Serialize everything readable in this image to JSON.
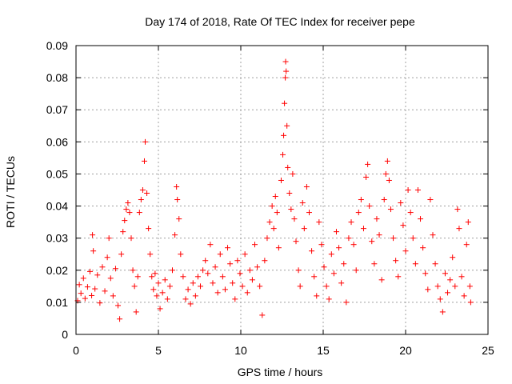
{
  "chart_data": {
    "type": "scatter",
    "title": "Day 174 of 2018, Rate Of TEC Index for receiver pepe",
    "xlabel": "GPS time / hours",
    "ylabel": "ROTI / TECUs",
    "xlim": [
      0,
      25
    ],
    "ylim": [
      0,
      0.09
    ],
    "xticks": [
      0,
      5,
      10,
      15,
      20,
      25
    ],
    "xtick_labels": [
      "0",
      "5",
      "10",
      "15",
      "20",
      "25"
    ],
    "yticks": [
      0,
      0.01,
      0.02,
      0.03,
      0.04,
      0.05,
      0.06,
      0.07,
      0.08,
      0.09
    ],
    "ytick_labels": [
      "0",
      "0.01",
      "0.02",
      "0.03",
      "0.04",
      "0.05",
      "0.06",
      "0.07",
      "0.08",
      "0.09"
    ],
    "grid": true,
    "marker": "+",
    "marker_color": "#ff0000",
    "series": [
      {
        "name": "ROTI",
        "points": [
          [
            0.1,
            0.0105
          ],
          [
            0.2,
            0.0155
          ],
          [
            0.3,
            0.0128
          ],
          [
            0.45,
            0.0175
          ],
          [
            0.55,
            0.0112
          ],
          [
            0.7,
            0.0148
          ],
          [
            0.85,
            0.0196
          ],
          [
            0.95,
            0.0121
          ],
          [
            1.0,
            0.031
          ],
          [
            1.05,
            0.026
          ],
          [
            1.15,
            0.0142
          ],
          [
            1.3,
            0.0185
          ],
          [
            1.45,
            0.0098
          ],
          [
            1.6,
            0.021
          ],
          [
            1.75,
            0.0135
          ],
          [
            1.9,
            0.024
          ],
          [
            2.0,
            0.03
          ],
          [
            2.1,
            0.0175
          ],
          [
            2.25,
            0.012
          ],
          [
            2.4,
            0.0205
          ],
          [
            2.55,
            0.009
          ],
          [
            2.65,
            0.0048
          ],
          [
            2.75,
            0.025
          ],
          [
            2.85,
            0.032
          ],
          [
            2.95,
            0.0355
          ],
          [
            3.05,
            0.039
          ],
          [
            3.15,
            0.041
          ],
          [
            3.25,
            0.038
          ],
          [
            3.35,
            0.03
          ],
          [
            3.45,
            0.02
          ],
          [
            3.55,
            0.015
          ],
          [
            3.65,
            0.007
          ],
          [
            3.75,
            0.018
          ],
          [
            3.85,
            0.038
          ],
          [
            3.95,
            0.042
          ],
          [
            4.05,
            0.045
          ],
          [
            4.15,
            0.054
          ],
          [
            4.2,
            0.06
          ],
          [
            4.3,
            0.044
          ],
          [
            4.4,
            0.033
          ],
          [
            4.5,
            0.025
          ],
          [
            4.6,
            0.018
          ],
          [
            4.7,
            0.014
          ],
          [
            4.8,
            0.019
          ],
          [
            4.9,
            0.012
          ],
          [
            5.0,
            0.016
          ],
          [
            5.1,
            0.008
          ],
          [
            5.25,
            0.013
          ],
          [
            5.4,
            0.017
          ],
          [
            5.55,
            0.011
          ],
          [
            5.7,
            0.015
          ],
          [
            5.85,
            0.02
          ],
          [
            6.0,
            0.031
          ],
          [
            6.1,
            0.046
          ],
          [
            6.15,
            0.042
          ],
          [
            6.25,
            0.036
          ],
          [
            6.35,
            0.025
          ],
          [
            6.5,
            0.018
          ],
          [
            6.65,
            0.011
          ],
          [
            6.8,
            0.014
          ],
          [
            6.95,
            0.0095
          ],
          [
            7.1,
            0.016
          ],
          [
            7.25,
            0.012
          ],
          [
            7.4,
            0.018
          ],
          [
            7.55,
            0.015
          ],
          [
            7.7,
            0.02
          ],
          [
            7.85,
            0.023
          ],
          [
            8.0,
            0.019
          ],
          [
            8.15,
            0.028
          ],
          [
            8.3,
            0.016
          ],
          [
            8.45,
            0.021
          ],
          [
            8.6,
            0.013
          ],
          [
            8.75,
            0.025
          ],
          [
            8.9,
            0.018
          ],
          [
            9.05,
            0.014
          ],
          [
            9.2,
            0.027
          ],
          [
            9.35,
            0.022
          ],
          [
            9.5,
            0.016
          ],
          [
            9.65,
            0.011
          ],
          [
            9.8,
            0.023
          ],
          [
            9.95,
            0.019
          ],
          [
            10.1,
            0.015
          ],
          [
            10.25,
            0.025
          ],
          [
            10.4,
            0.013
          ],
          [
            10.55,
            0.02
          ],
          [
            10.7,
            0.017
          ],
          [
            10.85,
            0.028
          ],
          [
            11.0,
            0.021
          ],
          [
            11.15,
            0.015
          ],
          [
            11.3,
            0.006
          ],
          [
            11.45,
            0.023
          ],
          [
            11.6,
            0.03
          ],
          [
            11.75,
            0.035
          ],
          [
            11.9,
            0.04
          ],
          [
            12.0,
            0.033
          ],
          [
            12.1,
            0.043
          ],
          [
            12.2,
            0.038
          ],
          [
            12.3,
            0.027
          ],
          [
            12.45,
            0.048
          ],
          [
            12.55,
            0.056
          ],
          [
            12.6,
            0.062
          ],
          [
            12.65,
            0.072
          ],
          [
            12.7,
            0.08
          ],
          [
            12.72,
            0.085
          ],
          [
            12.75,
            0.082
          ],
          [
            12.8,
            0.065
          ],
          [
            12.85,
            0.052
          ],
          [
            12.95,
            0.044
          ],
          [
            13.05,
            0.039
          ],
          [
            13.15,
            0.05
          ],
          [
            13.25,
            0.036
          ],
          [
            13.35,
            0.029
          ],
          [
            13.5,
            0.02
          ],
          [
            13.6,
            0.015
          ],
          [
            13.75,
            0.041
          ],
          [
            13.85,
            0.033
          ],
          [
            14.0,
            0.046
          ],
          [
            14.15,
            0.038
          ],
          [
            14.3,
            0.026
          ],
          [
            14.45,
            0.018
          ],
          [
            14.6,
            0.012
          ],
          [
            14.75,
            0.035
          ],
          [
            14.9,
            0.028
          ],
          [
            15.05,
            0.021
          ],
          [
            15.2,
            0.015
          ],
          [
            15.35,
            0.011
          ],
          [
            15.5,
            0.025
          ],
          [
            15.65,
            0.019
          ],
          [
            15.8,
            0.032
          ],
          [
            15.95,
            0.027
          ],
          [
            16.1,
            0.016
          ],
          [
            16.25,
            0.022
          ],
          [
            16.4,
            0.01
          ],
          [
            16.55,
            0.03
          ],
          [
            16.7,
            0.035
          ],
          [
            16.85,
            0.028
          ],
          [
            17.0,
            0.02
          ],
          [
            17.15,
            0.038
          ],
          [
            17.3,
            0.042
          ],
          [
            17.45,
            0.033
          ],
          [
            17.6,
            0.049
          ],
          [
            17.7,
            0.053
          ],
          [
            17.8,
            0.04
          ],
          [
            17.95,
            0.029
          ],
          [
            18.1,
            0.022
          ],
          [
            18.25,
            0.036
          ],
          [
            18.4,
            0.031
          ],
          [
            18.55,
            0.017
          ],
          [
            18.7,
            0.042
          ],
          [
            18.8,
            0.05
          ],
          [
            18.9,
            0.054
          ],
          [
            19.0,
            0.048
          ],
          [
            19.1,
            0.039
          ],
          [
            19.25,
            0.03
          ],
          [
            19.4,
            0.023
          ],
          [
            19.55,
            0.018
          ],
          [
            19.7,
            0.041
          ],
          [
            19.85,
            0.034
          ],
          [
            20.0,
            0.026
          ],
          [
            20.15,
            0.045
          ],
          [
            20.3,
            0.038
          ],
          [
            20.45,
            0.03
          ],
          [
            20.6,
            0.022
          ],
          [
            20.75,
            0.045
          ],
          [
            20.9,
            0.036
          ],
          [
            21.05,
            0.027
          ],
          [
            21.2,
            0.019
          ],
          [
            21.35,
            0.014
          ],
          [
            21.5,
            0.042
          ],
          [
            21.65,
            0.031
          ],
          [
            21.8,
            0.022
          ],
          [
            21.95,
            0.015
          ],
          [
            22.1,
            0.011
          ],
          [
            22.25,
            0.007
          ],
          [
            22.4,
            0.019
          ],
          [
            22.55,
            0.013
          ],
          [
            22.7,
            0.017
          ],
          [
            22.85,
            0.024
          ],
          [
            23.0,
            0.015
          ],
          [
            23.15,
            0.039
          ],
          [
            23.25,
            0.033
          ],
          [
            23.4,
            0.018
          ],
          [
            23.55,
            0.012
          ],
          [
            23.7,
            0.028
          ],
          [
            23.8,
            0.035
          ],
          [
            23.9,
            0.015
          ],
          [
            23.95,
            0.01
          ]
        ]
      }
    ]
  }
}
